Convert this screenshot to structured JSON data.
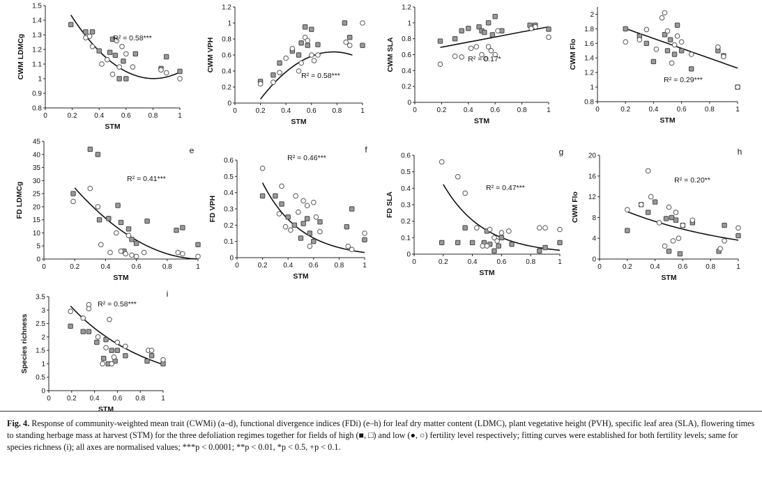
{
  "chart_data": [
    {
      "id": "a",
      "type": "scatter",
      "panel_label": "",
      "xlabel": "STM",
      "ylabel": "CWM LDMCg",
      "xlim": [
        0,
        1
      ],
      "ylim": [
        0.8,
        1.5
      ],
      "xticks": [
        "0",
        "0.2",
        "0.4",
        "0.6",
        "0.8",
        "1"
      ],
      "yticks": [
        "0.8",
        "0.9",
        "1",
        "1.1",
        "1.2",
        "1.3",
        "1.4",
        "1.5"
      ],
      "r2_label": "R² = 0.58***",
      "trend": {
        "kind": "poly2",
        "c": [
          1.745,
          -1.85,
          1.15
        ],
        "x_range": [
          0.19,
          1.0
        ]
      },
      "series": [
        {
          "marker": "filled-square",
          "x": [
            0.19,
            0.3,
            0.35,
            0.4,
            0.48,
            0.5,
            0.52,
            0.55,
            0.58,
            0.6,
            0.67,
            0.86,
            0.9,
            1.0
          ],
          "y": [
            1.37,
            1.32,
            1.32,
            1.19,
            1.18,
            1.27,
            1.16,
            1.0,
            1.12,
            1.0,
            1.17,
            1.07,
            1.15,
            1.05
          ]
        },
        {
          "marker": "open-circle",
          "x": [
            0.3,
            0.33,
            0.35,
            0.42,
            0.46,
            0.5,
            0.53,
            0.55,
            0.57,
            0.6,
            0.65,
            0.86,
            0.9,
            1.0
          ],
          "y": [
            1.28,
            1.29,
            1.22,
            1.1,
            1.13,
            1.03,
            1.26,
            1.08,
            1.22,
            1.17,
            1.08,
            1.06,
            1.04,
            1.0
          ]
        }
      ]
    },
    {
      "id": "b",
      "type": "scatter",
      "panel_label": "",
      "xlabel": "STM",
      "ylabel": "CWM VPH",
      "xlim": [
        0,
        1
      ],
      "ylim": [
        0,
        1.2
      ],
      "xticks": [
        "0",
        "0.2",
        "0.4",
        "0.6",
        "0.8",
        "1"
      ],
      "yticks": [
        "0",
        "0.2",
        "0.4",
        "0.6",
        "0.8",
        "1",
        "1.2"
      ],
      "r2_label": "R² = 0.58***",
      "trend": {
        "kind": "poly2",
        "c": [
          -0.435,
          2.78,
          -1.8
        ],
        "x_range": [
          0.2,
          0.92
        ]
      },
      "series": [
        {
          "marker": "filled-square",
          "x": [
            0.2,
            0.3,
            0.35,
            0.45,
            0.5,
            0.52,
            0.55,
            0.57,
            0.6,
            0.65,
            0.86,
            0.9,
            1.0
          ],
          "y": [
            0.27,
            0.35,
            0.5,
            0.65,
            0.6,
            0.75,
            0.95,
            0.72,
            0.92,
            0.73,
            1.0,
            0.82,
            0.72
          ]
        },
        {
          "marker": "open-circle",
          "x": [
            0.2,
            0.3,
            0.35,
            0.4,
            0.45,
            0.5,
            0.52,
            0.55,
            0.57,
            0.6,
            0.62,
            0.65,
            0.87,
            0.9,
            1.0
          ],
          "y": [
            0.24,
            0.26,
            0.38,
            0.56,
            0.68,
            0.4,
            0.5,
            0.82,
            0.78,
            0.6,
            0.53,
            0.6,
            0.76,
            0.72,
            1.0
          ]
        }
      ]
    },
    {
      "id": "c",
      "type": "scatter",
      "panel_label": "",
      "xlabel": "STM",
      "ylabel": "CWM SLA",
      "xlim": [
        0,
        1
      ],
      "ylim": [
        0,
        1.2
      ],
      "xticks": [
        "0",
        "0.2",
        "0.4",
        "0.6",
        "0.8",
        "1"
      ],
      "yticks": [
        "0",
        "0.2",
        "0.4",
        "0.6",
        "0.8",
        "1",
        "1.2"
      ],
      "r2_label": "R² = 0.17*",
      "trend": {
        "kind": "linear",
        "c": [
          0.63,
          0.32
        ],
        "x_range": [
          0.19,
          1.0
        ]
      },
      "series": [
        {
          "marker": "filled-square",
          "x": [
            0.19,
            0.3,
            0.35,
            0.4,
            0.48,
            0.5,
            0.52,
            0.55,
            0.58,
            0.6,
            0.65,
            0.86,
            0.9,
            1.0
          ],
          "y": [
            0.77,
            0.8,
            0.9,
            0.93,
            0.95,
            0.9,
            0.88,
            1.0,
            0.85,
            1.08,
            0.9,
            0.97,
            0.97,
            0.92
          ]
        },
        {
          "marker": "open-circle",
          "x": [
            0.19,
            0.3,
            0.35,
            0.42,
            0.46,
            0.5,
            0.53,
            0.55,
            0.57,
            0.6,
            0.62,
            0.87,
            0.9,
            1.0
          ],
          "y": [
            0.48,
            0.58,
            0.57,
            0.68,
            0.7,
            0.6,
            0.55,
            0.7,
            0.65,
            0.6,
            0.9,
            0.93,
            0.95,
            0.82
          ]
        }
      ]
    },
    {
      "id": "d",
      "type": "scatter",
      "panel_label": "",
      "xlabel": "STM",
      "ylabel": "CWM Flo",
      "xlim": [
        0,
        1
      ],
      "ylim": [
        0.8,
        2.1
      ],
      "xticks": [
        "0",
        "0.2",
        "0.4",
        "0.6",
        "0.8",
        "1"
      ],
      "yticks": [
        "0.8",
        "1",
        "1.2",
        "1.4",
        "1.6",
        "1.8",
        "2"
      ],
      "r2_label": "R² = 0.29***",
      "trend": {
        "kind": "linear",
        "c": [
          1.94,
          -0.68
        ],
        "x_range": [
          0.2,
          1.0
        ]
      },
      "series": [
        {
          "marker": "filled-square",
          "x": [
            0.2,
            0.3,
            0.35,
            0.4,
            0.48,
            0.5,
            0.52,
            0.55,
            0.57,
            0.6,
            0.67,
            0.86,
            0.9,
            1.0
          ],
          "y": [
            1.8,
            1.7,
            1.6,
            1.35,
            1.72,
            1.5,
            1.65,
            1.45,
            1.85,
            1.5,
            1.25,
            1.5,
            1.43,
            1.0
          ]
        },
        {
          "marker": "open-circle",
          "x": [
            0.2,
            0.3,
            0.35,
            0.42,
            0.46,
            0.48,
            0.5,
            0.53,
            0.55,
            0.57,
            0.6,
            0.67,
            0.86,
            0.9,
            1.0
          ],
          "y": [
            1.62,
            1.65,
            1.79,
            1.52,
            1.95,
            2.02,
            1.77,
            1.33,
            1.58,
            1.7,
            1.62,
            1.45,
            1.55,
            1.42,
            1.0
          ]
        }
      ]
    },
    {
      "id": "e",
      "type": "scatter",
      "panel_label": "e",
      "xlabel": "STM",
      "ylabel": "FD LDMCg",
      "xlim": [
        0,
        1
      ],
      "ylim": [
        0,
        45
      ],
      "xticks": [
        "0",
        "0.2",
        "0.4",
        "0.6",
        "0.8",
        "1"
      ],
      "yticks": [
        "0",
        "5",
        "10",
        "15",
        "20",
        "25",
        "30",
        "35",
        "40",
        "45"
      ],
      "r2_label": "R² = 0.41***",
      "trend": {
        "kind": "poly2",
        "c": [
          42.0,
          -82.0,
          40.0
        ],
        "x_range": [
          0.2,
          0.99
        ]
      },
      "series": [
        {
          "marker": "filled-square",
          "x": [
            0.19,
            0.3,
            0.35,
            0.36,
            0.42,
            0.48,
            0.5,
            0.52,
            0.55,
            0.57,
            0.6,
            0.67,
            0.86,
            0.9,
            1.0
          ],
          "y": [
            25,
            42,
            40,
            15,
            15.5,
            20.5,
            14,
            3,
            11.5,
            7.5,
            6,
            14.5,
            11,
            12,
            5.5
          ]
        },
        {
          "marker": "open-circle",
          "x": [
            0.19,
            0.3,
            0.35,
            0.37,
            0.43,
            0.47,
            0.5,
            0.53,
            0.55,
            0.57,
            0.6,
            0.65,
            0.87,
            0.9,
            1.0
          ],
          "y": [
            22,
            27,
            20,
            5.5,
            2.5,
            10,
            3,
            2,
            9,
            1.5,
            1,
            2.5,
            2.5,
            2,
            1
          ]
        }
      ]
    },
    {
      "id": "f",
      "type": "scatter",
      "panel_label": "f",
      "xlabel": "STM",
      "ylabel": "FD VPH",
      "xlim": [
        0,
        1
      ],
      "ylim": [
        0,
        0.6
      ],
      "xticks": [
        "0",
        "0.2",
        "0.4",
        "0.6",
        "0.8",
        "1"
      ],
      "yticks": [
        "0",
        "0.1",
        "0.2",
        "0.3",
        "0.4",
        "0.5",
        "0.6"
      ],
      "r2_label": "R² = 0.46***",
      "trend": {
        "kind": "exp",
        "c": [
          0.9,
          3.35
        ],
        "x_range": [
          0.2,
          1.0
        ]
      },
      "series": [
        {
          "marker": "filled-square",
          "x": [
            0.2,
            0.3,
            0.35,
            0.4,
            0.45,
            0.5,
            0.52,
            0.55,
            0.57,
            0.6,
            0.65,
            0.86,
            0.9,
            1.0
          ],
          "y": [
            0.38,
            0.38,
            0.33,
            0.25,
            0.2,
            0.12,
            0.21,
            0.24,
            0.15,
            0.1,
            0.22,
            0.19,
            0.3,
            0.11
          ]
        },
        {
          "marker": "open-circle",
          "x": [
            0.2,
            0.33,
            0.35,
            0.38,
            0.42,
            0.46,
            0.48,
            0.52,
            0.55,
            0.57,
            0.6,
            0.62,
            0.65,
            0.87,
            0.9,
            1.0
          ],
          "y": [
            0.55,
            0.27,
            0.44,
            0.19,
            0.17,
            0.38,
            0.28,
            0.35,
            0.32,
            0.07,
            0.34,
            0.25,
            0.16,
            0.07,
            0.05,
            0.15
          ]
        }
      ]
    },
    {
      "id": "g",
      "type": "scatter",
      "panel_label": "g",
      "xlabel": "STM",
      "ylabel": "FD SLA",
      "xlim": [
        0,
        1
      ],
      "ylim": [
        0,
        0.6
      ],
      "xticks": [
        "0",
        "0.2",
        "0.4",
        "0.6",
        "0.8",
        "1"
      ],
      "yticks": [
        "0",
        "0.1",
        "0.2",
        "0.3",
        "0.4",
        "0.5",
        "0.6"
      ],
      "r2_label": "R² = 0.47***",
      "trend": {
        "kind": "exp",
        "c": [
          0.87,
          3.6
        ],
        "x_range": [
          0.2,
          1.0
        ]
      },
      "series": [
        {
          "marker": "filled-square",
          "x": [
            0.19,
            0.3,
            0.35,
            0.4,
            0.48,
            0.5,
            0.52,
            0.55,
            0.58,
            0.6,
            0.67,
            0.86,
            0.9,
            1.0
          ],
          "y": [
            0.07,
            0.07,
            0.16,
            0.07,
            0.07,
            0.14,
            0.06,
            0.02,
            0.05,
            0.1,
            0.06,
            0.02,
            0.04,
            0.07
          ]
        },
        {
          "marker": "open-circle",
          "x": [
            0.19,
            0.3,
            0.35,
            0.43,
            0.47,
            0.5,
            0.52,
            0.55,
            0.57,
            0.6,
            0.65,
            0.86,
            0.9,
            1.0
          ],
          "y": [
            0.56,
            0.47,
            0.37,
            0.16,
            0.05,
            0.05,
            0.15,
            0.1,
            0.08,
            0.13,
            0.14,
            0.16,
            0.16,
            0.15
          ]
        }
      ]
    },
    {
      "id": "h",
      "type": "scatter",
      "panel_label": "h",
      "xlabel": "STM",
      "ylabel": "CWM Flo",
      "xlim": [
        0,
        1
      ],
      "ylim": [
        0,
        20
      ],
      "xticks": [
        "0",
        "0.2",
        "0.4",
        "0.6",
        "0.8",
        "1"
      ],
      "yticks": [
        "0",
        "4",
        "8",
        "12",
        "16",
        "20"
      ],
      "r2_label": "R² = 0.20**",
      "trend": {
        "kind": "exp",
        "c": [
          11.5,
          1.15
        ],
        "x_range": [
          0.2,
          1.0
        ]
      },
      "series": [
        {
          "marker": "filled-square",
          "x": [
            0.2,
            0.3,
            0.35,
            0.4,
            0.48,
            0.5,
            0.52,
            0.55,
            0.58,
            0.6,
            0.67,
            0.86,
            0.9,
            1.0
          ],
          "y": [
            5.5,
            10.5,
            9,
            11,
            7.8,
            1.5,
            8,
            7.5,
            1,
            6.5,
            7,
            1.5,
            6.5,
            4.5
          ]
        },
        {
          "marker": "open-circle",
          "x": [
            0.2,
            0.3,
            0.35,
            0.37,
            0.43,
            0.47,
            0.5,
            0.53,
            0.55,
            0.57,
            0.6,
            0.67,
            0.87,
            0.9,
            1.0
          ],
          "y": [
            9.5,
            10.5,
            17,
            12,
            7,
            2.5,
            10,
            3.5,
            9,
            4,
            6.5,
            7.5,
            2,
            3.5,
            6
          ]
        }
      ]
    },
    {
      "id": "i",
      "type": "scatter",
      "panel_label": "i",
      "xlabel": "STM",
      "ylabel": "Species richness",
      "xlim": [
        0,
        1
      ],
      "ylim": [
        0,
        3.5
      ],
      "xticks": [
        "0",
        "0.2",
        "0.4",
        "0.6",
        "0.8",
        "1"
      ],
      "yticks": [
        "0",
        "0.5",
        "1",
        "1.5",
        "2",
        "2.5",
        "3",
        "3.5"
      ],
      "r2_label": "R² = 0.58***",
      "trend": {
        "kind": "exp",
        "c": [
          4.15,
          1.45
        ],
        "x_range": [
          0.19,
          1.0
        ]
      },
      "series": [
        {
          "marker": "filled-square",
          "x": [
            0.19,
            0.3,
            0.35,
            0.42,
            0.48,
            0.5,
            0.52,
            0.55,
            0.58,
            0.6,
            0.67,
            0.86,
            0.9,
            1.0
          ],
          "y": [
            2.4,
            2.2,
            2.2,
            1.8,
            1.2,
            1.9,
            1.0,
            1.5,
            1.1,
            1.5,
            1.3,
            1.1,
            1.3,
            1.0
          ]
        },
        {
          "marker": "open-circle",
          "x": [
            0.19,
            0.3,
            0.35,
            0.35,
            0.43,
            0.47,
            0.5,
            0.53,
            0.55,
            0.57,
            0.6,
            0.67,
            0.87,
            0.9,
            1.0
          ],
          "y": [
            2.95,
            2.7,
            3.2,
            3.05,
            2.0,
            1.0,
            1.6,
            2.65,
            1.0,
            1.25,
            1.8,
            1.65,
            1.5,
            1.5,
            1.15
          ]
        }
      ]
    }
  ],
  "caption": {
    "label": "Fig. 4.",
    "text": "Response of community-weighted mean trait (CWMi) (a–d), functional divergence indices (FDi) (e–h) for leaf dry matter content (LDMC), plant vegetative height (PVH), specific leaf area (SLA), flowering times to standing herbage mass at harvest (STM) for the three defoliation regimes together for fields of high (■, □) and low (●, ○) fertility level respectively; fitting curves were established for both fertility levels; same for species richness (i); all axes are normalised values; ***p < 0.0001; **p < 0.01, *p < 0.5, +p < 0.1."
  }
}
